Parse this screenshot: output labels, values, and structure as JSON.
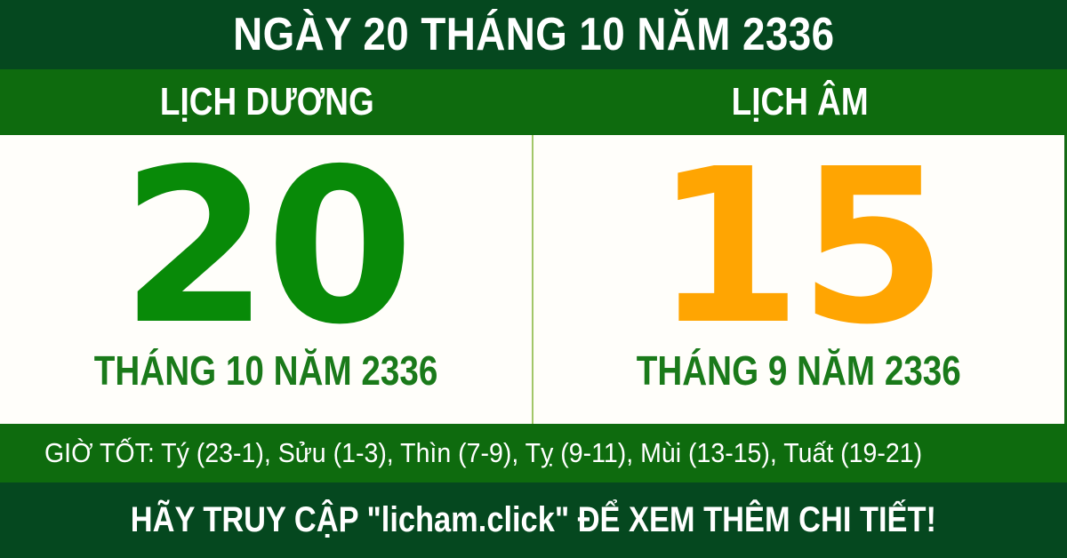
{
  "banner": {
    "title": "NGÀY 20 THÁNG 10 NĂM 2336"
  },
  "calendars": {
    "solar": {
      "header": "LỊCH DƯƠNG",
      "day": "20",
      "month_year": "THÁNG 10 NĂM 2336"
    },
    "lunar": {
      "header": "LỊCH ÂM",
      "day": "15",
      "month_year": "THÁNG 9 NĂM 2336"
    }
  },
  "good_hours": {
    "text": "GIỜ TỐT: Tý (23-1), Sửu (1-3), Thìn (7-9), Tỵ (9-11), Mùi (13-15), Tuất (19-21)"
  },
  "footer": {
    "cta": "HÃY TRUY CẬP \"licham.click\" ĐỂ XEM THÊM CHI TIẾT!"
  },
  "colors": {
    "dark_green": "#05481F",
    "medium_green": "#0E6B0E",
    "solar_day_green": "#088A08",
    "month_label_green": "#1A7A1A",
    "lunar_day_orange": "#FFA502",
    "divider_light_green": "#A2C769",
    "panel_background": "#FFFEFA",
    "text_white": "#FFFFFF"
  }
}
